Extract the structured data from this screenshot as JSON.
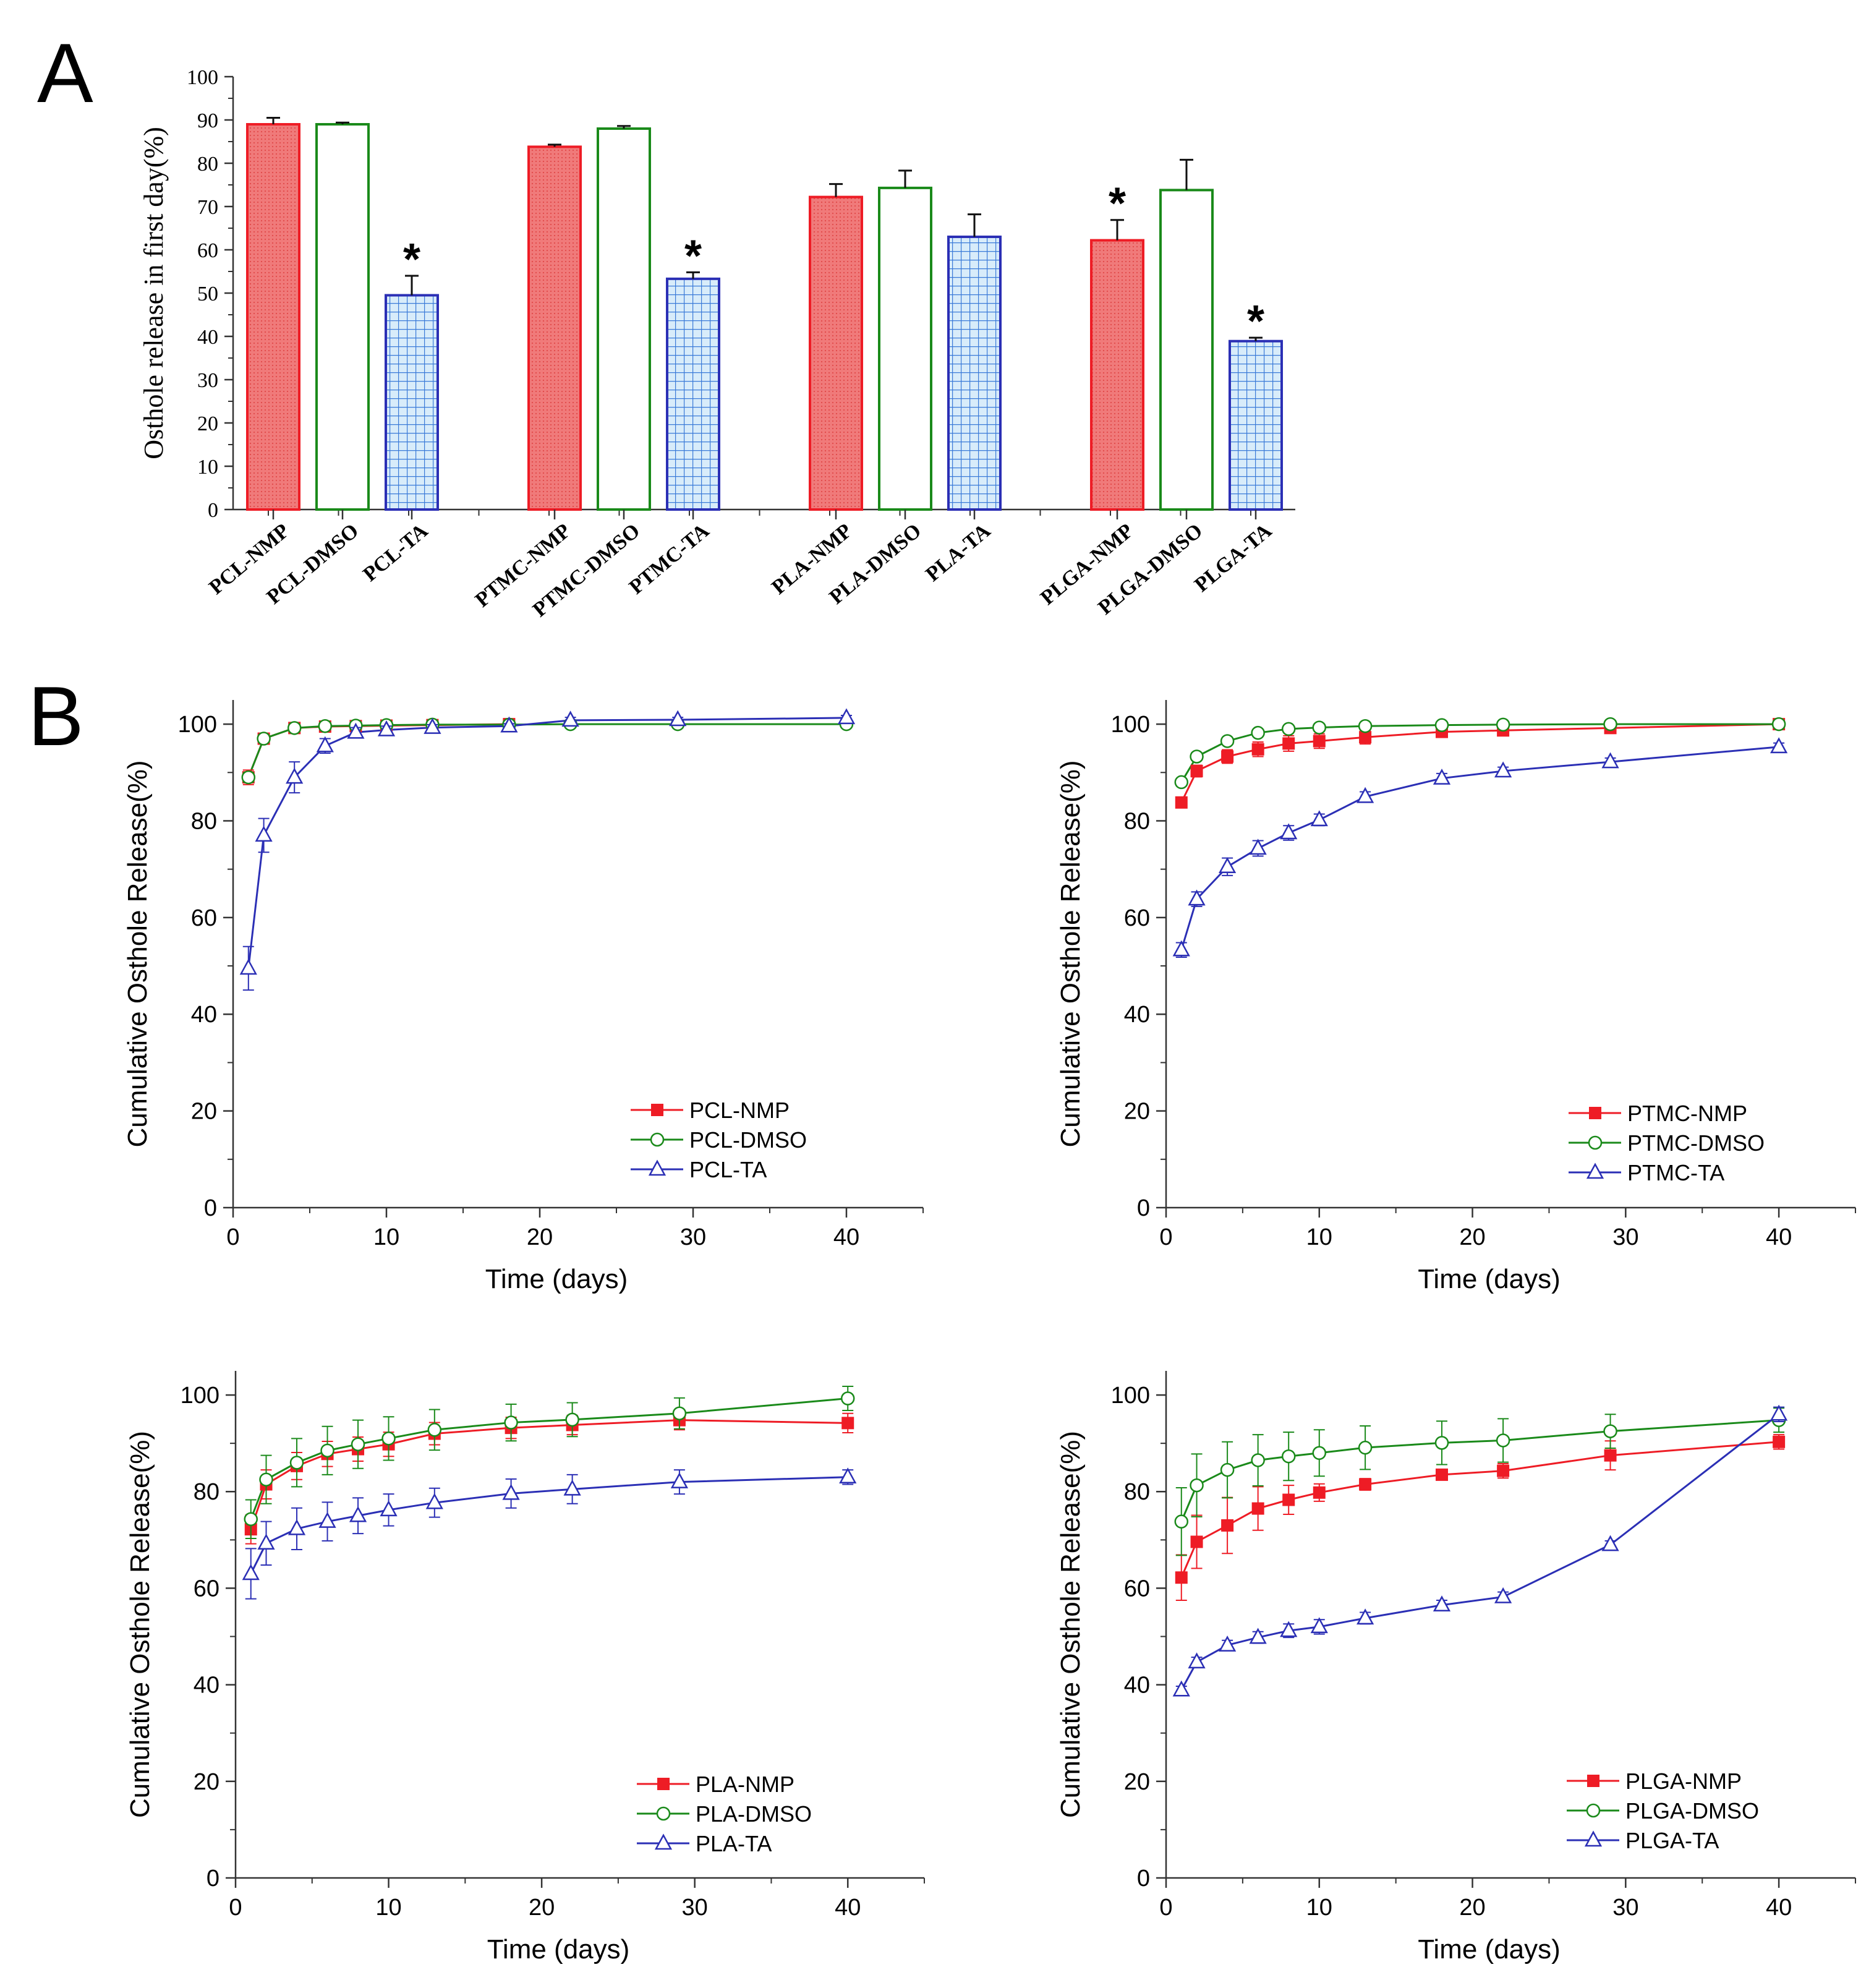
{
  "panel_labels": {
    "a": "A",
    "b": "B"
  },
  "colors": {
    "nmp": "#ee1c25",
    "dmso": "#1a8a1a",
    "ta": "#2b2fb5",
    "nmp_fill": "#f07a7a",
    "ta_fill": "#d8ecfa",
    "ta_grid": "#3a7ad8",
    "axis": "#333333"
  },
  "chart_data": [
    {
      "id": "bar",
      "type": "bar",
      "title": "",
      "xlabel": "",
      "ylabel": "Osthole release in first day(%)",
      "ylim": [
        0,
        100
      ],
      "yticks": [
        0,
        10,
        20,
        30,
        40,
        50,
        60,
        70,
        80,
        90,
        100
      ],
      "categories": [
        "PCL-NMP",
        "PCL-DMSO",
        "PCL-TA",
        "PTMC-NMP",
        "PTMC-DMSO",
        "PTMC-TA",
        "PLA-NMP",
        "PLA-DMSO",
        "PLA-TA",
        "PLGA-NMP",
        "PLGA-DMSO",
        "PLGA-TA"
      ],
      "solvents": [
        "NMP",
        "DMSO",
        "TA",
        "NMP",
        "DMSO",
        "TA",
        "NMP",
        "DMSO",
        "TA",
        "NMP",
        "DMSO",
        "TA"
      ],
      "values": [
        89.0,
        89.0,
        49.5,
        83.8,
        88.0,
        53.3,
        72.2,
        74.3,
        63.0,
        62.2,
        73.8,
        38.9
      ],
      "errors": [
        1.5,
        0.4,
        4.5,
        0.5,
        0.6,
        1.5,
        3.0,
        4.0,
        5.2,
        4.7,
        7.0,
        0.8
      ],
      "significance": [
        "",
        "",
        "*",
        "",
        "",
        "*",
        "",
        "",
        "",
        "*",
        "",
        "*"
      ]
    },
    {
      "id": "pcl",
      "type": "line",
      "title": "",
      "xlabel": "Time (days)",
      "ylabel": "Cumulative Osthole Release(%)",
      "xlim": [
        0,
        45
      ],
      "ylim": [
        0,
        105
      ],
      "xticks": [
        0,
        10,
        20,
        30,
        40
      ],
      "yticks": [
        0,
        20,
        40,
        60,
        80,
        100
      ],
      "legend": "bottom-right",
      "series": [
        {
          "name": "PCL-NMP",
          "solvent": "NMP",
          "x": [
            1,
            2,
            4,
            6,
            8,
            10,
            13,
            18
          ],
          "values": [
            89.0,
            97.0,
            99.2,
            99.5,
            99.6,
            99.7,
            99.8,
            100.0
          ],
          "errors": [
            1.5,
            1.0,
            0.5,
            0.3,
            0.3,
            0.2,
            0.2,
            0.2
          ]
        },
        {
          "name": "PCL-DMSO",
          "solvent": "DMSO",
          "x": [
            1,
            2,
            4,
            6,
            8,
            10,
            13,
            18,
            22,
            29,
            40
          ],
          "values": [
            89.0,
            97.0,
            99.2,
            99.6,
            99.7,
            99.8,
            99.9,
            99.9,
            100.0,
            100.0,
            100.0
          ],
          "errors": [
            1.0,
            0.8,
            0.4,
            0.3,
            0.2,
            0.2,
            0.2,
            0.2,
            0.2,
            0.2,
            0.2
          ]
        },
        {
          "name": "PCL-TA",
          "solvent": "TA",
          "x": [
            1,
            2,
            4,
            6,
            8,
            10,
            13,
            18,
            22,
            29,
            40
          ],
          "values": [
            49.5,
            77.0,
            89.0,
            95.5,
            98.3,
            98.8,
            99.3,
            99.6,
            100.8,
            100.9,
            101.3
          ],
          "errors": [
            4.5,
            3.5,
            3.2,
            1.5,
            1.0,
            0.8,
            0.6,
            0.5,
            0.6,
            0.5,
            0.5
          ]
        }
      ]
    },
    {
      "id": "ptmc",
      "type": "line",
      "title": "",
      "xlabel": "Time (days)",
      "ylabel": "Cumulative Osthole Release(%)",
      "xlim": [
        0,
        45
      ],
      "ylim": [
        0,
        105
      ],
      "xticks": [
        0,
        10,
        20,
        30,
        40
      ],
      "yticks": [
        0,
        20,
        40,
        60,
        80,
        100
      ],
      "legend": "bottom-right",
      "series": [
        {
          "name": "PTMC-NMP",
          "solvent": "NMP",
          "x": [
            1,
            2,
            4,
            6,
            8,
            10,
            13,
            18,
            22,
            29,
            40
          ],
          "values": [
            83.8,
            90.3,
            93.3,
            94.8,
            96.0,
            96.5,
            97.3,
            98.4,
            98.7,
            99.2,
            100.0
          ],
          "errors": [
            0.5,
            1.2,
            1.4,
            1.5,
            1.6,
            1.5,
            1.4,
            1.0,
            0.9,
            0.8,
            0.5
          ]
        },
        {
          "name": "PTMC-DMSO",
          "solvent": "DMSO",
          "x": [
            1,
            2,
            4,
            6,
            8,
            10,
            13,
            18,
            22,
            29,
            40
          ],
          "values": [
            88.0,
            93.3,
            96.5,
            98.2,
            99.0,
            99.3,
            99.6,
            99.8,
            99.9,
            100.0,
            100.0
          ],
          "errors": [
            0.6,
            0.8,
            0.7,
            0.5,
            0.5,
            0.4,
            0.3,
            0.3,
            0.2,
            0.2,
            0.2
          ]
        },
        {
          "name": "PTMC-TA",
          "solvent": "TA",
          "x": [
            1,
            2,
            4,
            6,
            8,
            10,
            13,
            18,
            22,
            29,
            40
          ],
          "values": [
            53.3,
            63.8,
            70.5,
            74.3,
            77.5,
            80.2,
            85.0,
            88.8,
            90.3,
            92.2,
            95.3
          ],
          "errors": [
            1.5,
            1.5,
            1.8,
            1.6,
            1.5,
            1.2,
            1.0,
            1.0,
            0.8,
            0.8,
            0.8
          ]
        }
      ]
    },
    {
      "id": "pla",
      "type": "line",
      "title": "",
      "xlabel": "Time (days)",
      "ylabel": "Cumulative Osthole Release(%)",
      "xlim": [
        0,
        45
      ],
      "ylim": [
        0,
        105
      ],
      "xticks": [
        0,
        10,
        20,
        30,
        40
      ],
      "yticks": [
        0,
        20,
        40,
        60,
        80,
        100
      ],
      "legend": "bottom-right",
      "series": [
        {
          "name": "PLA-NMP",
          "solvent": "NMP",
          "x": [
            1,
            2,
            4,
            6,
            8,
            10,
            13,
            18,
            22,
            29,
            40
          ],
          "values": [
            72.2,
            81.5,
            85.3,
            87.8,
            88.8,
            89.8,
            92.0,
            93.2,
            93.8,
            94.8,
            94.2
          ],
          "errors": [
            3.0,
            3.0,
            2.8,
            2.6,
            2.5,
            2.5,
            2.3,
            2.2,
            2.0,
            2.0,
            2.0
          ]
        },
        {
          "name": "PLA-DMSO",
          "solvent": "DMSO",
          "x": [
            1,
            2,
            4,
            6,
            8,
            10,
            13,
            18,
            22,
            29,
            40
          ],
          "values": [
            74.3,
            82.5,
            86.0,
            88.5,
            89.8,
            91.0,
            92.8,
            94.3,
            94.9,
            96.2,
            99.3
          ],
          "errors": [
            4.0,
            5.0,
            5.0,
            5.0,
            5.0,
            4.5,
            4.2,
            3.8,
            3.5,
            3.2,
            2.5
          ]
        },
        {
          "name": "PLA-TA",
          "solvent": "TA",
          "x": [
            1,
            2,
            4,
            6,
            8,
            10,
            13,
            18,
            22,
            29,
            40
          ],
          "values": [
            63.0,
            69.3,
            72.3,
            73.8,
            75.0,
            76.2,
            77.7,
            79.6,
            80.5,
            82.0,
            83.0
          ],
          "errors": [
            5.2,
            4.5,
            4.3,
            4.0,
            3.7,
            3.3,
            3.0,
            3.0,
            3.0,
            2.5,
            1.5
          ]
        }
      ]
    },
    {
      "id": "plga",
      "type": "line",
      "title": "",
      "xlabel": "Time (days)",
      "ylabel": "Cumulative Osthole Release(%)",
      "xlim": [
        0,
        45
      ],
      "ylim": [
        0,
        105
      ],
      "xticks": [
        0,
        10,
        20,
        30,
        40
      ],
      "yticks": [
        0,
        20,
        40,
        60,
        80,
        100
      ],
      "legend": "bottom-right",
      "series": [
        {
          "name": "PLGA-NMP",
          "solvent": "NMP",
          "x": [
            1,
            2,
            4,
            6,
            8,
            10,
            13,
            18,
            22,
            29,
            40
          ],
          "values": [
            62.2,
            69.6,
            73.0,
            76.5,
            78.3,
            79.8,
            81.5,
            83.5,
            84.3,
            87.5,
            90.3
          ],
          "errors": [
            4.7,
            5.5,
            5.8,
            4.5,
            3.0,
            1.8,
            1.2,
            1.0,
            1.5,
            3.0,
            1.5
          ]
        },
        {
          "name": "PLGA-DMSO",
          "solvent": "DMSO",
          "x": [
            1,
            2,
            4,
            6,
            8,
            10,
            13,
            18,
            22,
            29,
            40
          ],
          "values": [
            73.8,
            81.3,
            84.5,
            86.5,
            87.3,
            88.0,
            89.1,
            90.1,
            90.6,
            92.5,
            94.8
          ],
          "errors": [
            7.0,
            6.5,
            5.8,
            5.3,
            5.0,
            4.8,
            4.5,
            4.5,
            4.5,
            3.5,
            2.5
          ]
        },
        {
          "name": "PLGA-TA",
          "solvent": "TA",
          "x": [
            1,
            2,
            4,
            6,
            8,
            10,
            13,
            18,
            22,
            29,
            40
          ],
          "values": [
            38.9,
            44.7,
            48.2,
            49.8,
            51.2,
            52.0,
            53.8,
            56.5,
            58.2,
            69.0,
            96.0
          ],
          "errors": [
            0.8,
            1.0,
            1.0,
            1.2,
            1.4,
            1.5,
            1.2,
            1.0,
            1.0,
            0.8,
            1.5
          ]
        }
      ]
    }
  ]
}
